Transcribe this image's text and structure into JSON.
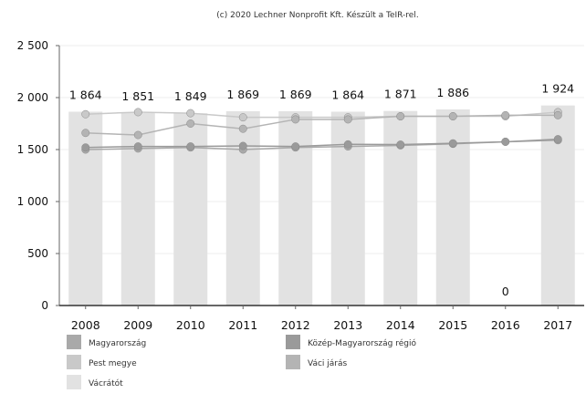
{
  "chart_data": {
    "type": "bar",
    "title": "",
    "copyright": "(c) 2020 Lechner Nonprofit Kft. Készült a TeIR-rel.",
    "xlabel": "",
    "ylabel": "",
    "categories": [
      "2008",
      "2009",
      "2010",
      "2011",
      "2012",
      "2013",
      "2014",
      "2015",
      "2016",
      "2017"
    ],
    "ylim": [
      0,
      2500
    ],
    "yticks": [
      0,
      500,
      1000,
      1500,
      2000,
      2500
    ],
    "ytick_labels": [
      "0",
      "500",
      "1 000",
      "1 500",
      "2 000",
      "2 500"
    ],
    "grid": true,
    "legend_position": "bottom",
    "bar_series": {
      "name": "Vácrátót",
      "values": [
        1864,
        1851,
        1849,
        1869,
        1869,
        1864,
        1871,
        1886,
        0,
        1924
      ],
      "labels": [
        "1 864",
        "1 851",
        "1 849",
        "1 869",
        "1 869",
        "1 864",
        "1 871",
        "1 886",
        "0",
        "1 924"
      ],
      "color": "#e2e2e2"
    },
    "line_series": [
      {
        "name": "Magyarország",
        "values": [
          1500,
          1510,
          1520,
          1500,
          1520,
          1530,
          1540,
          1555,
          1575,
          1590
        ],
        "color": "#a9a9a9"
      },
      {
        "name": "Közép-Magyarország régió",
        "values": [
          1520,
          1530,
          1530,
          1535,
          1530,
          1550,
          1548,
          1560,
          1575,
          1600
        ],
        "color": "#9a9a9a"
      },
      {
        "name": "Pest megye",
        "values": [
          1840,
          1860,
          1850,
          1810,
          1810,
          1810,
          1820,
          1820,
          1820,
          1860
        ],
        "color": "#c9c9c9"
      },
      {
        "name": "Váci járás",
        "values": [
          1660,
          1640,
          1750,
          1700,
          1790,
          1790,
          1820,
          1820,
          1830,
          1830
        ],
        "color": "#b4b4b4"
      }
    ],
    "legend": [
      {
        "label": "Magyarország",
        "color": "#a9a9a9"
      },
      {
        "label": "Közép-Magyarország régió",
        "color": "#9a9a9a"
      },
      {
        "label": "Pest megye",
        "color": "#c9c9c9"
      },
      {
        "label": "Váci járás",
        "color": "#b4b4b4"
      },
      {
        "label": "Vácrátót",
        "color": "#e2e2e2"
      }
    ]
  }
}
